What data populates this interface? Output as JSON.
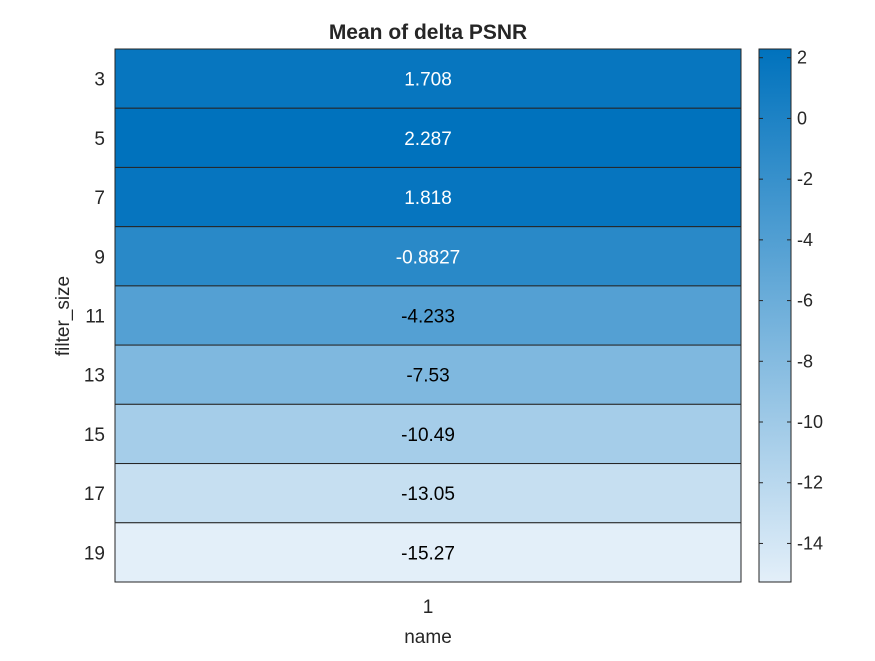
{
  "chart_data": {
    "type": "heatmap",
    "title": "Mean of delta PSNR",
    "xlabel": "name",
    "ylabel": "filter_size",
    "x_categories": [
      "1"
    ],
    "y_categories": [
      "3",
      "5",
      "7",
      "9",
      "11",
      "13",
      "15",
      "17",
      "19"
    ],
    "values": [
      [
        1.708
      ],
      [
        2.287
      ],
      [
        1.818
      ],
      [
        -0.8827
      ],
      [
        -4.233
      ],
      [
        -7.53
      ],
      [
        -10.49
      ],
      [
        -13.05
      ],
      [
        -15.27
      ]
    ],
    "value_labels": [
      "1.708",
      "2.287",
      "1.818",
      "-0.8827",
      "-4.233",
      "-7.53",
      "-10.49",
      "-13.05",
      "-15.27"
    ],
    "colorbar": {
      "range": [
        -15.27,
        2.287
      ],
      "ticks": [
        2,
        0,
        -2,
        -4,
        -6,
        -8,
        -10,
        -12,
        -14
      ],
      "tick_labels": [
        "2",
        "0",
        "-2",
        "-4",
        "-6",
        "-8",
        "-10",
        "-12",
        "-14"
      ],
      "color_low": "#e3eff9",
      "color_high": "#0072bd"
    },
    "cell_text_colors": {
      "dark_bg": "#ffffff",
      "light_bg": "#000000"
    },
    "grid": true,
    "colorbar_position": "right"
  }
}
